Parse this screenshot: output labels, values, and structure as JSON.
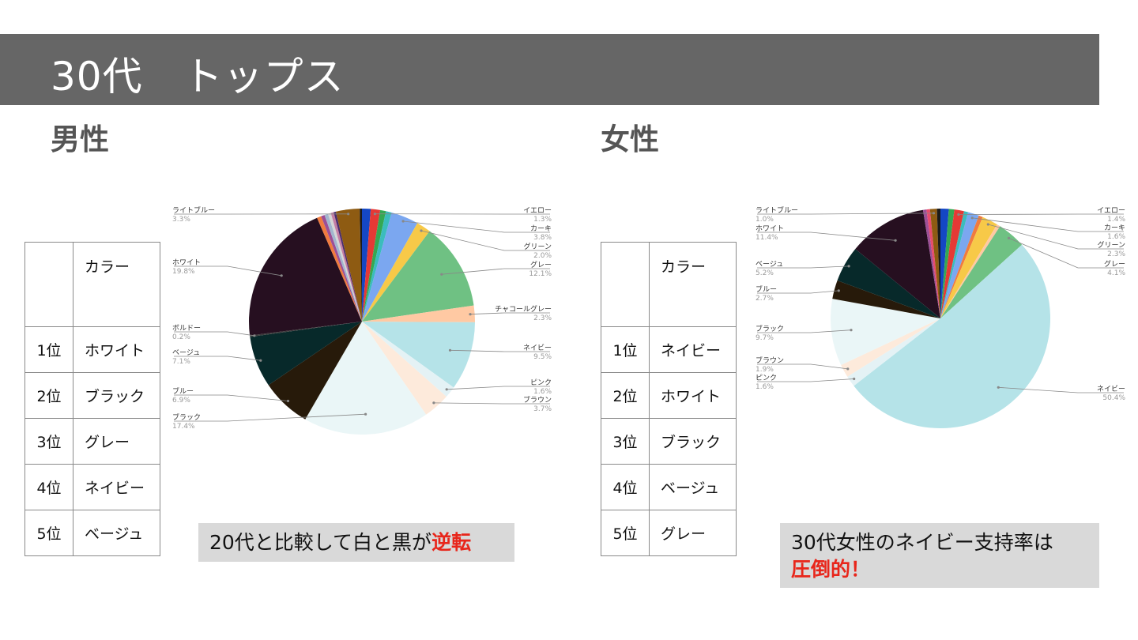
{
  "header": {
    "title": "30代　トップス"
  },
  "sections": {
    "male": {
      "title": "男性"
    },
    "female": {
      "title": "女性"
    }
  },
  "tables": {
    "male": {
      "header": "カラー",
      "rows": [
        {
          "rank": "1位",
          "color": "ホワイト"
        },
        {
          "rank": "2位",
          "color": "ブラック"
        },
        {
          "rank": "3位",
          "color": "グレー"
        },
        {
          "rank": "4位",
          "color": "ネイビー"
        },
        {
          "rank": "5位",
          "color": "ベージュ"
        }
      ]
    },
    "female": {
      "header": "カラー",
      "rows": [
        {
          "rank": "1位",
          "color": "ネイビー"
        },
        {
          "rank": "2位",
          "color": "ホワイト"
        },
        {
          "rank": "3位",
          "color": "ブラック"
        },
        {
          "rank": "4位",
          "color": "ベージュ"
        },
        {
          "rank": "5位",
          "color": "グレー"
        }
      ]
    }
  },
  "notes": {
    "male": {
      "text": "20代と比較して白と黒が",
      "highlight": "逆転"
    },
    "female": {
      "text": "30代女性のネイビー支持率は",
      "highlight": "圧倒的！"
    }
  },
  "chart_data": [
    {
      "type": "pie",
      "labeled_slices": [
        {
          "name": "イエロー",
          "value": 1.3,
          "pct": "1.3%",
          "color": "#e53935"
        },
        {
          "name": "カーキ",
          "value": 3.8,
          "pct": "3.8%",
          "color": "#7ba7f0"
        },
        {
          "name": "グリーン",
          "value": 2.0,
          "pct": "2.0%",
          "color": "#f7c948"
        },
        {
          "name": "グレー",
          "value": 12.1,
          "pct": "12.1%",
          "color": "#6fc183"
        },
        {
          "name": "チャコールグレー",
          "value": 2.3,
          "pct": "2.3%",
          "color": "#ffc9a3"
        },
        {
          "name": "ネイビー",
          "value": 9.5,
          "pct": "9.5%",
          "color": "#b5e3e8"
        },
        {
          "name": "ピンク",
          "value": 1.6,
          "pct": "1.6%",
          "color": "#e4f2f5"
        },
        {
          "name": "ブラウン",
          "value": 3.7,
          "pct": "3.7%",
          "color": "#fdeadb"
        },
        {
          "name": "ブラック",
          "value": 17.4,
          "pct": "17.4%",
          "color": "#eaf6f7"
        },
        {
          "name": "ブルー",
          "value": 6.9,
          "pct": "6.9%",
          "color": "#271a0a"
        },
        {
          "name": "ベージュ",
          "value": 7.1,
          "pct": "7.1%",
          "color": "#07292a"
        },
        {
          "name": "ボルドー",
          "value": 0.2,
          "pct": "0.2%",
          "color": "#3b3b3b"
        },
        {
          "name": "ホワイト",
          "value": 19.8,
          "pct": "19.8%",
          "color": "#260f20"
        },
        {
          "name": "ライトブルー",
          "value": 3.3,
          "pct": "3.3%",
          "color": "#8e5b12"
        }
      ],
      "minor_slices": [
        {
          "value": 1.2,
          "color": "#1447c4"
        },
        {
          "value": 0.8,
          "color": "#34a853"
        },
        {
          "value": 0.8,
          "color": "#3bbcbd"
        },
        {
          "value": 0.6,
          "color": "#f07b3f"
        },
        {
          "value": 0.5,
          "color": "#9c4f96"
        },
        {
          "value": 0.5,
          "color": "#a2b6ce"
        },
        {
          "value": 0.4,
          "color": "#d6d6d6"
        },
        {
          "value": 0.4,
          "color": "#c47ea4"
        },
        {
          "value": 0.3,
          "color": "#4a2d6e"
        },
        {
          "value": 0.3,
          "color": "#1a1a1a"
        }
      ]
    },
    {
      "type": "pie",
      "labeled_slices": [
        {
          "name": "イエロー",
          "value": 1.4,
          "pct": "1.4%",
          "color": "#e53935"
        },
        {
          "name": "カーキ",
          "value": 1.6,
          "pct": "1.6%",
          "color": "#7ba7f0"
        },
        {
          "name": "グリーン",
          "value": 2.3,
          "pct": "2.3%",
          "color": "#f7c948"
        },
        {
          "name": "グレー",
          "value": 4.1,
          "pct": "4.1%",
          "color": "#6fc183"
        },
        {
          "name": "ネイビー",
          "value": 50.4,
          "pct": "50.4%",
          "color": "#b5e3e8"
        },
        {
          "name": "ピンク",
          "value": 1.6,
          "pct": "1.6%",
          "color": "#e4f2f5"
        },
        {
          "name": "ブラウン",
          "value": 1.9,
          "pct": "1.9%",
          "color": "#fdeadb"
        },
        {
          "name": "ブラック",
          "value": 9.7,
          "pct": "9.7%",
          "color": "#eaf6f7"
        },
        {
          "name": "ブルー",
          "value": 2.7,
          "pct": "2.7%",
          "color": "#271a0a"
        },
        {
          "name": "ベージュ",
          "value": 5.2,
          "pct": "5.2%",
          "color": "#07292a"
        },
        {
          "name": "ホワイト",
          "value": 11.4,
          "pct": "11.4%",
          "color": "#260f20"
        },
        {
          "name": "ライトブルー",
          "value": 1.0,
          "pct": "1.0%",
          "color": "#8e5b12"
        }
      ],
      "minor_slices": [
        {
          "value": 1.2,
          "color": "#1447c4"
        },
        {
          "value": 0.8,
          "color": "#34a853"
        },
        {
          "value": 0.6,
          "color": "#3bbcbd"
        },
        {
          "value": 0.6,
          "color": "#f07b3f"
        },
        {
          "value": 0.5,
          "color": "#ffc9a3"
        },
        {
          "value": 0.5,
          "color": "#9c4f96"
        },
        {
          "value": 0.5,
          "color": "#e84b6d"
        },
        {
          "value": 0.5,
          "color": "#1a1a1a"
        }
      ]
    }
  ]
}
